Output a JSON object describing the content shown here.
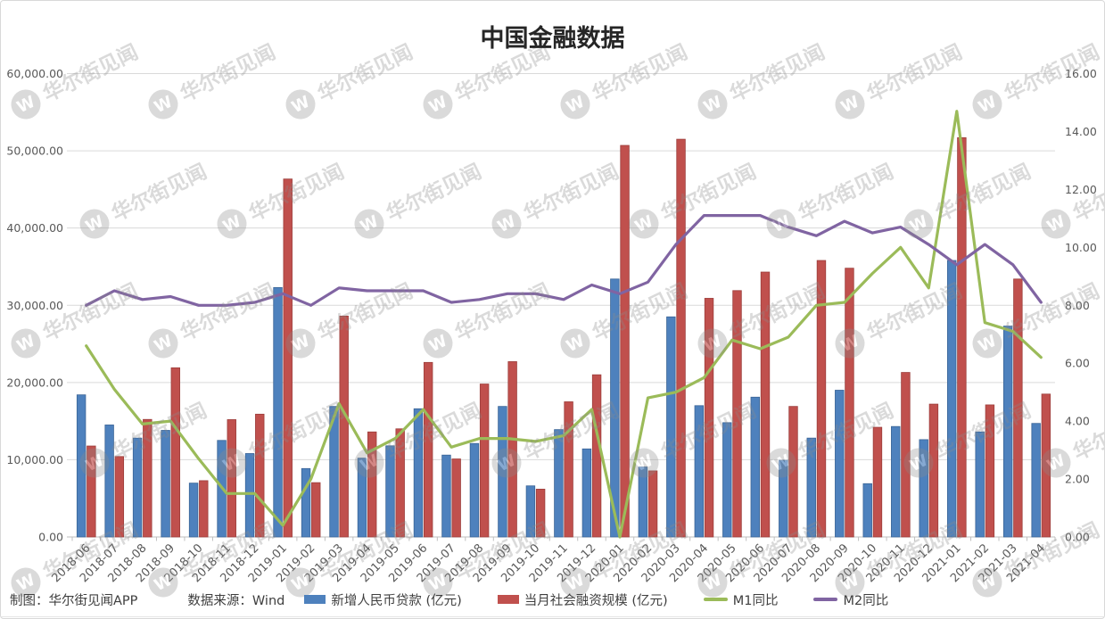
{
  "title": "中国金融数据",
  "footer": {
    "maker": "制图：华尔街见闻APP",
    "source": "数据来源：Wind"
  },
  "watermark": {
    "text": "华尔街见闻",
    "logo_letter": "W",
    "color": "#8C8C8C"
  },
  "chart_data": {
    "type": "combo-bar-line",
    "title": "中国金融数据",
    "xlabel": "",
    "grid": "horizontal",
    "legend_position": "bottom",
    "categories": [
      "2018-06",
      "2018-07",
      "2018-08",
      "2018-09",
      "2018-10",
      "2018-11",
      "2018-12",
      "2019-01",
      "2019-02",
      "2019-03",
      "2019-04",
      "2019-05",
      "2019-06",
      "2019-07",
      "2019-08",
      "2019-09",
      "2019-10",
      "2019-11",
      "2019-12",
      "2020-01",
      "2020-02",
      "2020-03",
      "2020-04",
      "2020-05",
      "2020-06",
      "2020-07",
      "2020-08",
      "2020-09",
      "2020-10",
      "2020-11",
      "2020-12",
      "2021-01",
      "2021-02",
      "2021-03",
      "2021-04"
    ],
    "left_axis": {
      "min": 0,
      "max": 60000,
      "tick_labels": [
        "0.00",
        "10,000.00",
        "20,000.00",
        "30,000.00",
        "40,000.00",
        "50,000.00",
        "60,000.00"
      ]
    },
    "right_axis": {
      "min": 0,
      "max": 16,
      "tick_labels": [
        "0.00",
        "2.00",
        "4.00",
        "6.00",
        "8.00",
        "10.00",
        "12.00",
        "14.00",
        "16.00"
      ]
    },
    "series": [
      {
        "key": "new-rmb-loans",
        "name": "新增人民币贷款 (亿元)",
        "type": "bar",
        "axis": "left",
        "color": "#4E81BD",
        "border_color": "#3A6496",
        "values": [
          18400,
          14500,
          12800,
          13800,
          6970,
          12500,
          10800,
          32300,
          8858,
          16900,
          10200,
          11800,
          16600,
          10600,
          12100,
          16900,
          6613,
          13900,
          11400,
          33400,
          9057,
          28500,
          17000,
          14800,
          18100,
          9927,
          12800,
          19000,
          6898,
          14300,
          12600,
          35800,
          13600,
          27300,
          14700
        ]
      },
      {
        "key": "total-social-financing",
        "name": "当月社会融资规模 (亿元)",
        "type": "bar",
        "axis": "left",
        "color": "#C0504D",
        "border_color": "#9C3E3B",
        "values": [
          11776,
          10415,
          15218,
          21900,
          7288,
          15191,
          15898,
          46350,
          7030,
          28600,
          13600,
          14000,
          22600,
          10100,
          19800,
          22700,
          6189,
          17500,
          21000,
          50700,
          8554,
          51500,
          30900,
          31900,
          34300,
          16900,
          35800,
          34800,
          14200,
          21300,
          17200,
          51700,
          17100,
          33400,
          18500
        ]
      },
      {
        "key": "m1-yoy",
        "name": "M1同比",
        "type": "line",
        "axis": "right",
        "color": "#9BBB59",
        "values": [
          6.6,
          5.1,
          3.9,
          4.0,
          2.7,
          1.5,
          1.5,
          0.4,
          2.0,
          4.6,
          2.9,
          3.4,
          4.4,
          3.1,
          3.4,
          3.4,
          3.3,
          3.5,
          4.4,
          0.0,
          4.8,
          5.0,
          5.5,
          6.8,
          6.5,
          6.9,
          8.0,
          8.1,
          9.1,
          10.0,
          8.6,
          14.7,
          7.4,
          7.1,
          6.2
        ]
      },
      {
        "key": "m2-yoy",
        "name": "M2同比",
        "type": "line",
        "axis": "right",
        "color": "#8064A2",
        "values": [
          8.0,
          8.5,
          8.2,
          8.3,
          8.0,
          8.0,
          8.1,
          8.4,
          8.0,
          8.6,
          8.5,
          8.5,
          8.5,
          8.1,
          8.2,
          8.4,
          8.4,
          8.2,
          8.7,
          8.4,
          8.8,
          10.1,
          11.1,
          11.1,
          11.1,
          10.7,
          10.4,
          10.9,
          10.5,
          10.7,
          10.1,
          9.4,
          10.1,
          9.4,
          8.1
        ]
      }
    ]
  }
}
